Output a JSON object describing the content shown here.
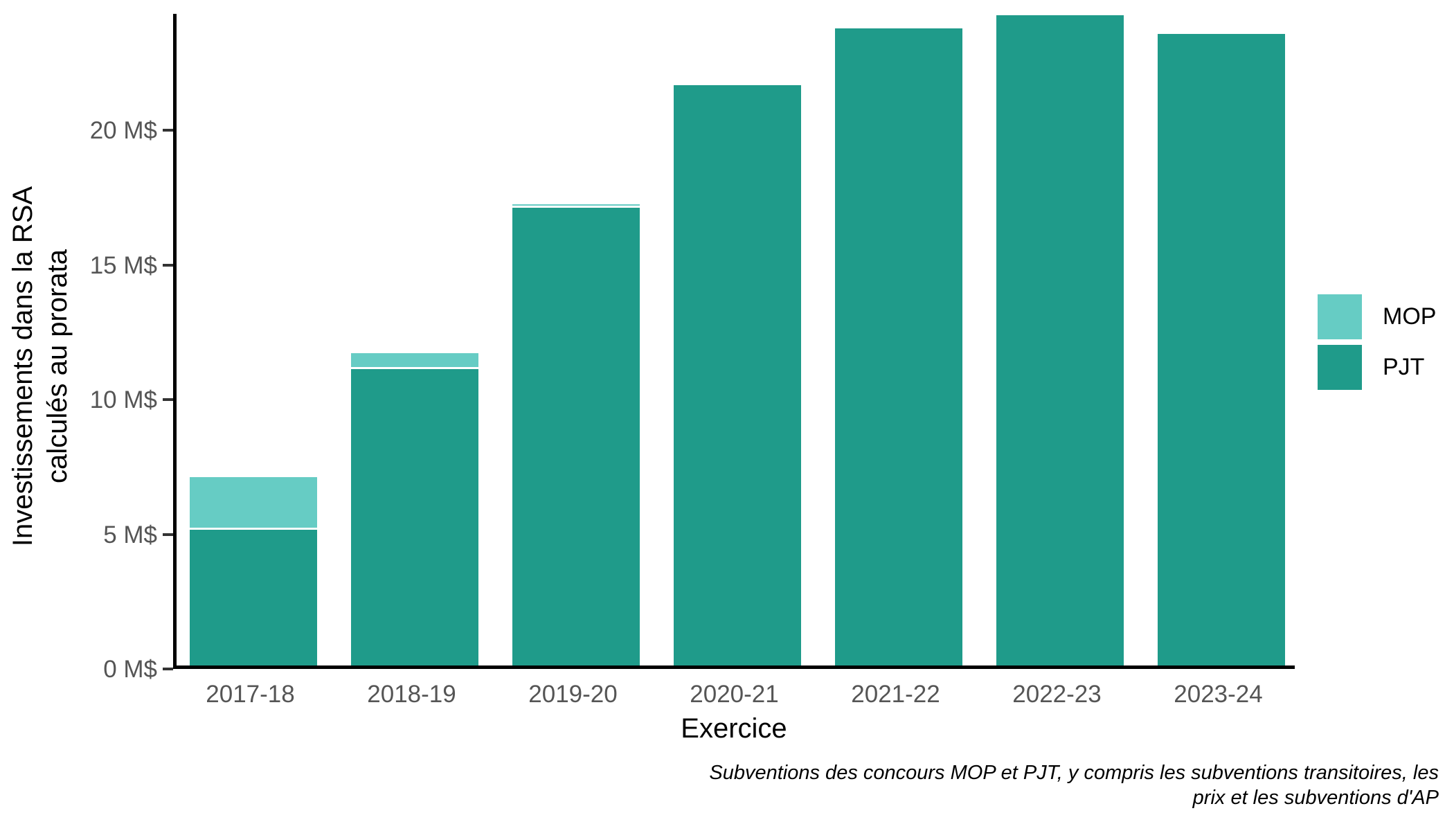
{
  "chart_data": {
    "type": "bar",
    "stacked": true,
    "categories": [
      "2017-18",
      "2018-19",
      "2019-20",
      "2020-21",
      "2021-22",
      "2022-23",
      "2023-24"
    ],
    "series": [
      {
        "name": "MOP",
        "color": "#66ccc4",
        "values": [
          1.95,
          0.6,
          0.12,
          0.06,
          0.05,
          0.05,
          0.08
        ]
      },
      {
        "name": "PJT",
        "color": "#1f9b8a",
        "values": [
          5.05,
          11.0,
          17.0,
          21.55,
          23.65,
          24.2,
          23.45
        ]
      }
    ],
    "totals": [
      7.0,
      11.6,
      17.1,
      21.6,
      23.7,
      24.25,
      23.5
    ],
    "xlabel": "Exercice",
    "ylabel_line1": "Investissements dans la RSA",
    "ylabel_line2": "calculés au prorata",
    "y_ticks": [
      {
        "value": 0,
        "label": "0 M$"
      },
      {
        "value": 5,
        "label": "5 M$"
      },
      {
        "value": 10,
        "label": "10 M$"
      },
      {
        "value": 15,
        "label": "15 M$"
      },
      {
        "value": 20,
        "label": "20 M$"
      }
    ],
    "ylim": [
      0,
      24.3
    ],
    "grid": false,
    "legend_position": "right",
    "caption_line1": "Subventions des concours MOP et PJT, y compris les subventions transitoires, les",
    "caption_line2": "prix et les subventions d'AP"
  },
  "colors": {
    "axis_line": "#000000",
    "tick_mark": "#333333",
    "tick_label": "#555555",
    "mop": "#66ccc4",
    "pjt": "#1f9b8a",
    "background": "#ffffff"
  }
}
